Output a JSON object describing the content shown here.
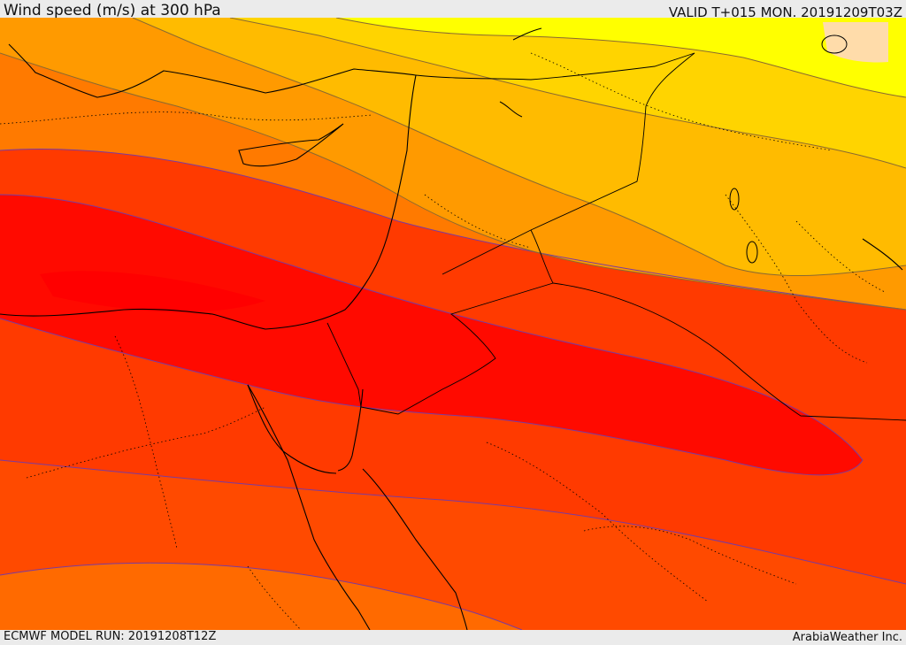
{
  "header": {
    "title": "Wind speed (m/s) at 300 hPa",
    "valid": "VALID T+015 MON. 20191209T03Z"
  },
  "footer": {
    "model_run": "ECMWF MODEL RUN: 20191208T12Z",
    "credit": "ArabiaWeather Inc."
  },
  "map": {
    "layer": "wind-speed-300hPa",
    "palette": [
      "#ffff00",
      "#ffd700",
      "#ffbb00",
      "#ff9a00",
      "#ff7200",
      "#ff5000",
      "#ff3000",
      "#ff1a00",
      "#ff0000",
      "#ffdcaa"
    ],
    "contour_color": "#7a3aa0"
  }
}
